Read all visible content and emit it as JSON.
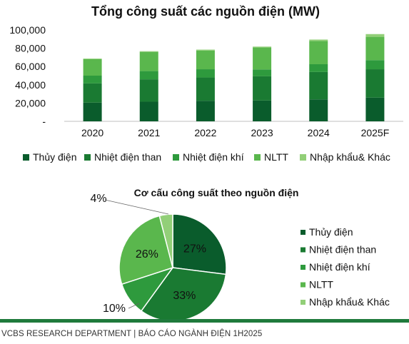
{
  "chart_data": [
    {
      "type": "bar",
      "stacked": true,
      "title": "Tổng công suất các nguồn điện (MW)",
      "categories": [
        "2020",
        "2021",
        "2022",
        "2023",
        "2024",
        "2025F"
      ],
      "y_tick_labels": [
        "-",
        "20,000",
        "40,000",
        "60,000",
        "80,000",
        "100,000"
      ],
      "ylim": [
        0,
        100000
      ],
      "grid": false,
      "legend_position": "bottom",
      "series": [
        {
          "name": "Thủy điện",
          "color": "#0a5c2c",
          "values": [
            20500,
            21500,
            22500,
            22800,
            24000,
            26000
          ]
        },
        {
          "name": "Nhiệt điện than",
          "color": "#1a7a32",
          "values": [
            21000,
            24500,
            25500,
            26500,
            30000,
            31000
          ]
        },
        {
          "name": "Nhiệt điện khí",
          "color": "#2e9a3d",
          "values": [
            8500,
            9000,
            9000,
            7500,
            8500,
            10000
          ]
        },
        {
          "name": "NLTT",
          "color": "#5ab74d",
          "values": [
            18000,
            21000,
            20500,
            24000,
            25500,
            25500
          ]
        },
        {
          "name": "Nhập khẩu& Khác",
          "color": "#92cf78",
          "values": [
            700,
            800,
            1000,
            1000,
            1500,
            3000
          ]
        }
      ]
    },
    {
      "type": "pie",
      "title": "Cơ cấu công suất theo nguồn điện",
      "legend_position": "right",
      "slices": [
        {
          "name": "Thủy điện",
          "value": 27,
          "label": "27%",
          "color": "#0a5c2c"
        },
        {
          "name": "Nhiệt điện than",
          "value": 33,
          "label": "33%",
          "color": "#1a7a32"
        },
        {
          "name": "Nhiệt điện khí",
          "value": 10,
          "label": "10%",
          "color": "#2e9a3d"
        },
        {
          "name": "NLTT",
          "value": 26,
          "label": "26%",
          "color": "#5ab74d"
        },
        {
          "name": "Nhập khẩu& Khác",
          "value": 4,
          "label": "4%",
          "color": "#92cf78"
        }
      ]
    }
  ],
  "footer": {
    "text": "VCBS RESEARCH DEPARTMENT | BÁO CÁO NGÀNH ĐIỆN 1H2025",
    "rule_color": "#1f7a3c"
  }
}
